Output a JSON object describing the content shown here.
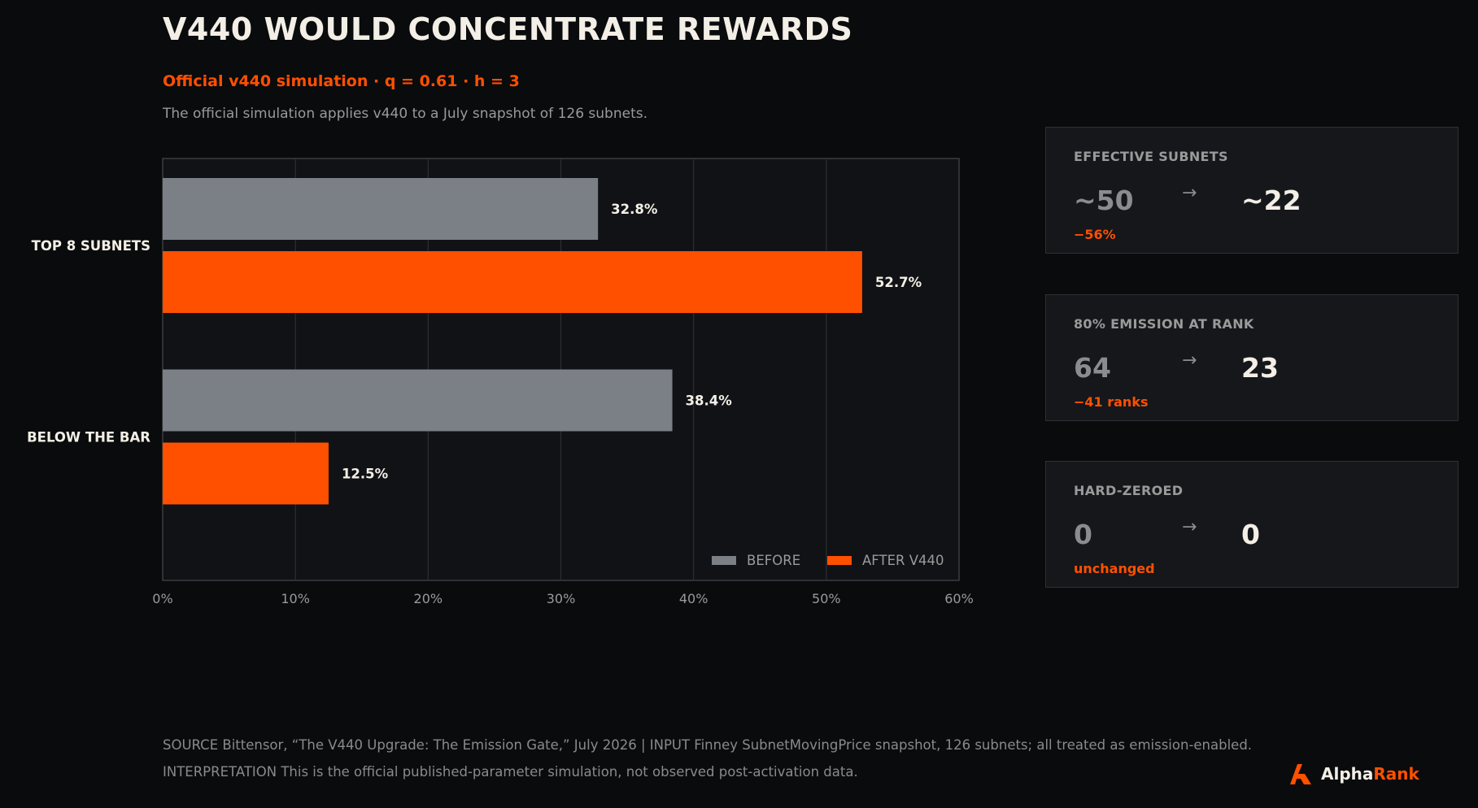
{
  "header": {
    "title": "V440 WOULD CONCENTRATE REWARDS",
    "subtitle": "Official v440 simulation · q = 0.61 · h = 3",
    "description": "The official simulation applies v440 to a July snapshot of 126 subnets."
  },
  "colors": {
    "background": "#0a0b0d",
    "plot_background": "#111216",
    "before": "#7b7f86",
    "after": "#ff5000",
    "text": "#f3efe6",
    "muted": "#9a9a9a"
  },
  "chart_data": {
    "type": "bar",
    "orientation": "horizontal",
    "categories": [
      "TOP 8 SUBNETS",
      "BELOW THE BAR"
    ],
    "series": [
      {
        "name": "BEFORE",
        "values": [
          32.8,
          38.4
        ],
        "labels": [
          "32.8%",
          "38.4%"
        ]
      },
      {
        "name": "AFTER V440",
        "values": [
          52.7,
          12.5
        ],
        "labels": [
          "52.7%",
          "12.5%"
        ]
      }
    ],
    "xlim": [
      0,
      60
    ],
    "xticks": [
      "0%",
      "10%",
      "20%",
      "30%",
      "40%",
      "50%",
      "60%"
    ],
    "grid": true,
    "legend_position": "bottom-right"
  },
  "cards": [
    {
      "label": "EFFECTIVE SUBNETS",
      "before": "~50",
      "arrow": "→",
      "after": "~22",
      "delta": "−56%"
    },
    {
      "label": "80% EMISSION AT RANK",
      "before": "64",
      "arrow": "→",
      "after": "23",
      "delta": "−41 ranks"
    },
    {
      "label": "HARD-ZEROED",
      "before": "0",
      "arrow": "→",
      "after": "0",
      "delta": "unchanged"
    }
  ],
  "footer": {
    "line1": "SOURCE  Bittensor, “The V440 Upgrade: The Emission Gate,” July 2026   |   INPUT  Finney SubnetMovingPrice snapshot, 126 subnets; all treated as emission-enabled.",
    "line2": "INTERPRETATION  This is the official published-parameter simulation, not observed post-activation data."
  },
  "brand": {
    "alpha": "Alpha",
    "rank": "Rank",
    "icon": "alpharank-logo-icon"
  }
}
